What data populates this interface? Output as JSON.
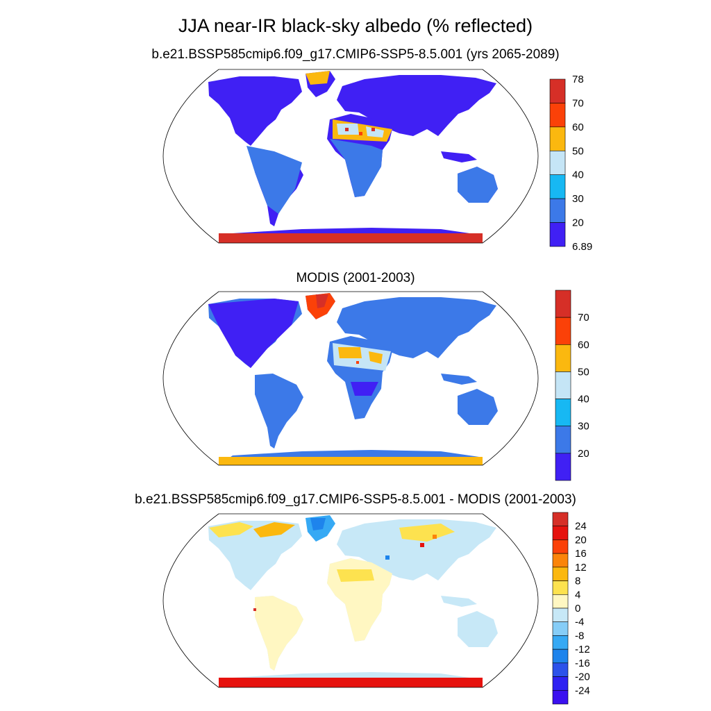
{
  "figure": {
    "title": "JJA near-IR black-sky albedo (% reflected)"
  },
  "panels": [
    {
      "title": "b.e21.BSSP585cmip6.f09_g17.CMIP6-SSP5-8.5.001 (yrs 2065-2089)",
      "colorbar": {
        "labels": [
          "78",
          "70",
          "60",
          "50",
          "40",
          "30",
          "20",
          "6.89"
        ],
        "colors": [
          "#d62f27",
          "#fb4108",
          "#fbb80f",
          "#c5e5f6",
          "#17b8f3",
          "#3c79e8",
          "#4020f4"
        ]
      }
    },
    {
      "title": "MODIS (2001-2003)",
      "colorbar": {
        "labels": [
          "70",
          "60",
          "50",
          "40",
          "30",
          "20"
        ],
        "colors": [
          "#d62f27",
          "#fb4108",
          "#fbb80f",
          "#c5e5f6",
          "#17b8f3",
          "#3c79e8",
          "#4020f4"
        ]
      }
    },
    {
      "title": "b.e21.BSSP585cmip6.f09_g17.CMIP6-SSP5-8.5.001 - MODIS (2001-2003)",
      "colorbar": {
        "labels": [
          "24",
          "20",
          "16",
          "12",
          "8",
          "4",
          "0",
          "-4",
          "-8",
          "-12",
          "-16",
          "-20",
          "-24"
        ],
        "colors": [
          "#d62f27",
          "#e6120e",
          "#fb4108",
          "#fb8409",
          "#fbb80f",
          "#fde24f",
          "#fff7c2",
          "#c7e8f7",
          "#86cdf7",
          "#36a9f4",
          "#1e84ec",
          "#2c52ea",
          "#2e21f2",
          "#3b10f0"
        ]
      }
    }
  ]
}
